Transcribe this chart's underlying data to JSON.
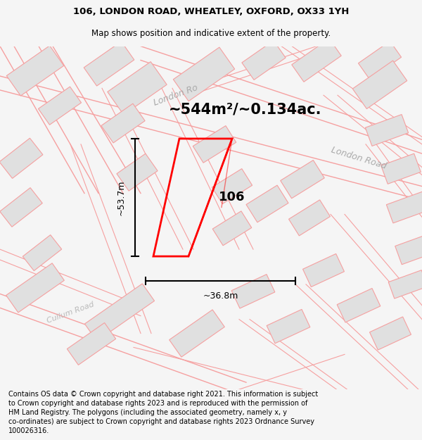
{
  "title_line1": "106, LONDON ROAD, WHEATLEY, OXFORD, OX33 1YH",
  "title_line2": "Map shows position and indicative extent of the property.",
  "area_text": "~544m²/~0.134ac.",
  "label_106": "106",
  "dim_height": "~53.7m",
  "dim_width": "~36.8m",
  "road_label1": "London Ro",
  "road_label2": "London Road",
  "road_label3": "Cullum Road",
  "footer_text": "Contains OS data © Crown copyright and database right 2021. This information is subject to Crown copyright and database rights 2023 and is reproduced with the permission of HM Land Registry. The polygons (including the associated geometry, namely x, y co-ordinates) are subject to Crown copyright and database rights 2023 Ordnance Survey 100026316.",
  "bg_color": "#f5f5f5",
  "map_bg": "#ffffff",
  "highlight_color": "#ff0000",
  "building_fill": "#e0e0e0",
  "building_edge": "#f5a0a0",
  "road_color": "#f5a0a0",
  "figsize": [
    6.0,
    6.25
  ],
  "dpi": 100
}
